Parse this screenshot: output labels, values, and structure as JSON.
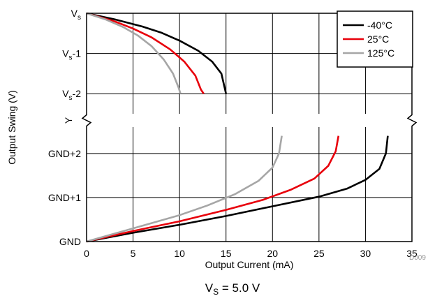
{
  "chart_data": {
    "type": "line",
    "xlabel": "Output Current (mA)",
    "ylabel": "Output Swing (V)",
    "xlim": [
      0,
      35
    ],
    "x_ticks": [
      "0",
      "5",
      "10",
      "15",
      "20",
      "25",
      "30",
      "35"
    ],
    "upper_panel": {
      "y_ticks": [
        {
          "base": "V",
          "sub": "s",
          "suffix": ""
        },
        {
          "base": "V",
          "sub": "s",
          "suffix": "-1"
        },
        {
          "base": "V",
          "sub": "s",
          "suffix": "-2"
        }
      ],
      "ylim_offset_from_vs": [
        -2.5,
        0
      ],
      "series": [
        {
          "name": "-40°C",
          "color": "#000000",
          "points": [
            [
              0,
              0
            ],
            [
              3,
              -0.15
            ],
            [
              6,
              -0.33
            ],
            [
              8,
              -0.48
            ],
            [
              10,
              -0.68
            ],
            [
              12,
              -0.93
            ],
            [
              13.5,
              -1.2
            ],
            [
              14.5,
              -1.5
            ],
            [
              15,
              -2.0
            ]
          ]
        },
        {
          "name": "25°C",
          "color": "#e8000b",
          "points": [
            [
              0,
              0
            ],
            [
              3,
              -0.2
            ],
            [
              5,
              -0.38
            ],
            [
              7,
              -0.6
            ],
            [
              9,
              -0.9
            ],
            [
              10.5,
              -1.2
            ],
            [
              11.7,
              -1.55
            ],
            [
              12.3,
              -1.9
            ],
            [
              12.6,
              -2.0
            ]
          ]
        },
        {
          "name": "125°C",
          "color": "#a6a6a6",
          "points": [
            [
              0,
              0
            ],
            [
              2,
              -0.15
            ],
            [
              4,
              -0.35
            ],
            [
              5.5,
              -0.55
            ],
            [
              7,
              -0.82
            ],
            [
              8.3,
              -1.15
            ],
            [
              9.3,
              -1.5
            ],
            [
              9.9,
              -1.85
            ],
            [
              10.1,
              -2.0
            ]
          ]
        }
      ]
    },
    "break_label": "Y",
    "lower_panel": {
      "y_ticks": [
        "GND",
        "GND+1",
        "GND+2"
      ],
      "ylim_offset_from_gnd": [
        0,
        2.6
      ],
      "series": [
        {
          "name": "-40°C",
          "color": "#000000",
          "points": [
            [
              0,
              0
            ],
            [
              5,
              0.2
            ],
            [
              10,
              0.38
            ],
            [
              15,
              0.58
            ],
            [
              20,
              0.8
            ],
            [
              25,
              1.02
            ],
            [
              28,
              1.2
            ],
            [
              30,
              1.4
            ],
            [
              31.5,
              1.65
            ],
            [
              32.2,
              2.0
            ],
            [
              32.4,
              2.4
            ]
          ]
        },
        {
          "name": "25°C",
          "color": "#e8000b",
          "points": [
            [
              0,
              0
            ],
            [
              5,
              0.24
            ],
            [
              10,
              0.46
            ],
            [
              15,
              0.72
            ],
            [
              19,
              0.95
            ],
            [
              22,
              1.18
            ],
            [
              24.5,
              1.43
            ],
            [
              26,
              1.72
            ],
            [
              26.8,
              2.05
            ],
            [
              27.1,
              2.4
            ]
          ]
        },
        {
          "name": "125°C",
          "color": "#a6a6a6",
          "points": [
            [
              0,
              0
            ],
            [
              5,
              0.3
            ],
            [
              10,
              0.6
            ],
            [
              13,
              0.82
            ],
            [
              16,
              1.08
            ],
            [
              18.5,
              1.38
            ],
            [
              20,
              1.68
            ],
            [
              20.7,
              2.0
            ],
            [
              21,
              2.4
            ]
          ]
        }
      ]
    },
    "legend": {
      "placement": "top-right",
      "entries": [
        {
          "label": "-40°C",
          "color": "#000000"
        },
        {
          "label": "25°C",
          "color": "#e8000b"
        },
        {
          "label": "125°C",
          "color": "#a6a6a6"
        }
      ]
    },
    "grid": true,
    "corner_label": "D009"
  },
  "caption": {
    "base": "V",
    "sub": "S",
    "suffix": " = 5.0 V"
  }
}
